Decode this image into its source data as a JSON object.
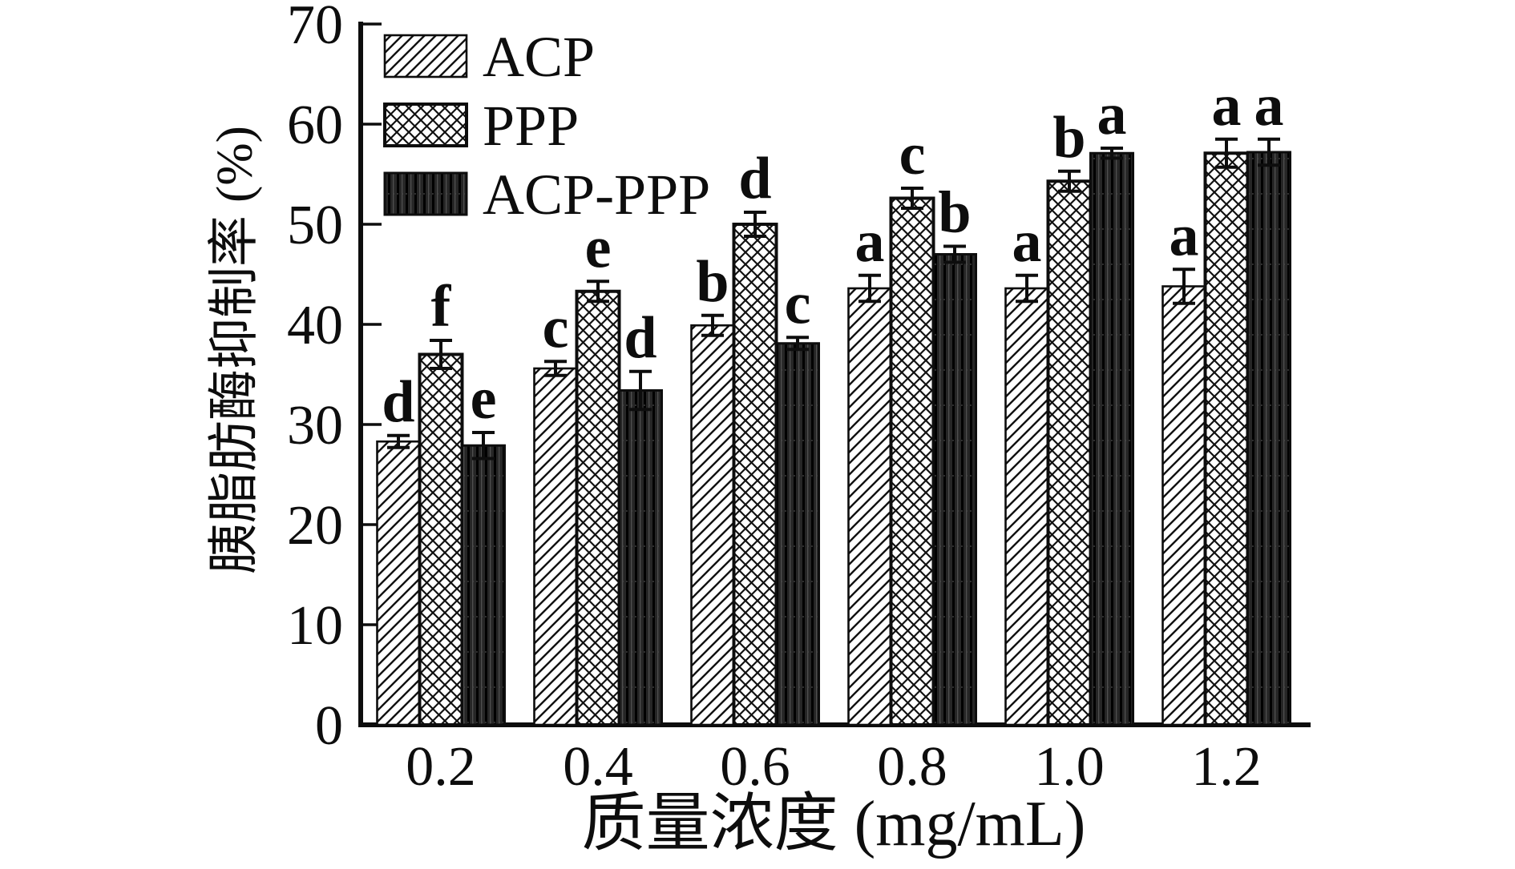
{
  "chart_data": {
    "type": "bar",
    "title": "",
    "xlabel": "质量浓度 (mg/mL)",
    "ylabel": "胰脂肪酶抑制率 (%)",
    "categories": [
      "0.2",
      "0.4",
      "0.6",
      "0.8",
      "1.0",
      "1.2"
    ],
    "ylim": [
      0,
      70
    ],
    "yticks": [
      0,
      10,
      20,
      30,
      40,
      50,
      60,
      70
    ],
    "grid": false,
    "legend_position": "top-left-inside",
    "series": [
      {
        "name": "ACP",
        "pattern": "diagonal-hatch",
        "values": [
          28.3,
          35.6,
          39.9,
          43.6,
          43.6,
          43.8
        ],
        "errors": [
          0.6,
          0.7,
          1.0,
          1.3,
          1.3,
          1.7
        ],
        "sig_letters": [
          "d",
          "c",
          "b",
          "a",
          "a",
          "a"
        ]
      },
      {
        "name": "PPP",
        "pattern": "crosshatch",
        "values": [
          37.0,
          43.3,
          50.0,
          52.6,
          54.3,
          57.1
        ],
        "errors": [
          1.4,
          1.0,
          1.2,
          1.0,
          1.0,
          1.4
        ],
        "sig_letters": [
          "f",
          "e",
          "d",
          "c",
          "b",
          "a"
        ]
      },
      {
        "name": "ACP-PPP",
        "pattern": "solid-dark-vertical-stripes",
        "values": [
          27.9,
          33.4,
          38.1,
          47.0,
          57.1,
          57.2
        ],
        "errors": [
          1.3,
          1.9,
          0.6,
          0.8,
          0.5,
          1.3
        ],
        "sig_letters": [
          "e",
          "d",
          "c",
          "b",
          "a",
          "a"
        ]
      }
    ],
    "colors": {
      "ink": "#0d0d0d",
      "background": "#ffffff",
      "dark_bar_base": "#262626",
      "dark_bar_line": "#000000",
      "dark_bar_faint_line": "#555555"
    }
  }
}
